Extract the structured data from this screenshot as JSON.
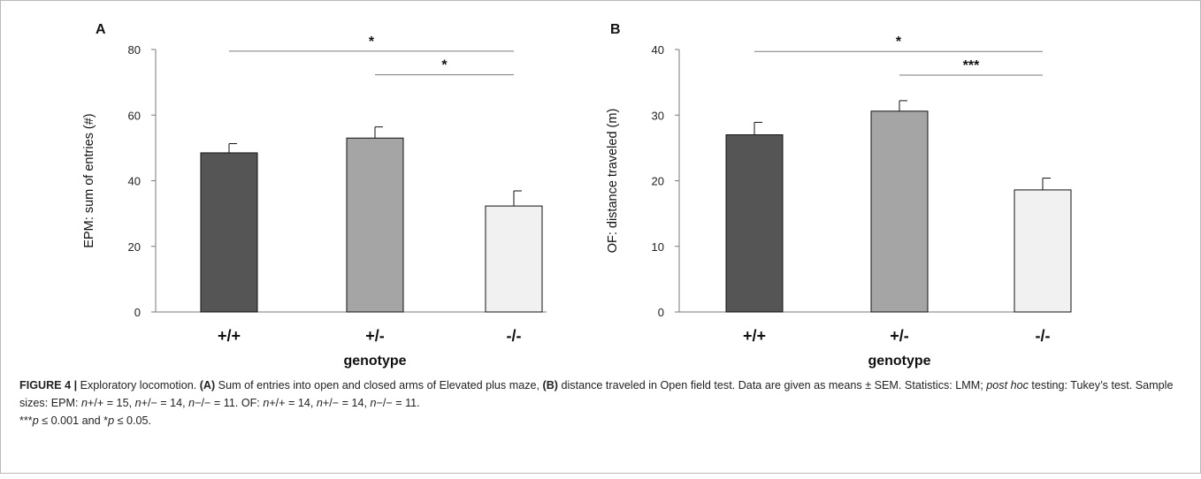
{
  "chart_data": [
    {
      "panel": "A",
      "type": "bar",
      "categories": [
        "+/+",
        "+/-",
        "-/-"
      ],
      "values": [
        48.5,
        53,
        32.3
      ],
      "errors": [
        2.8,
        3.4,
        4.6
      ],
      "colors": [
        "#555555",
        "#a5a5a5",
        "#f1f1f1"
      ],
      "ylabel": "EPM: sum of entries (#)",
      "xlabel": "genotype",
      "ylim": [
        0,
        80
      ],
      "yticks": [
        0,
        20,
        40,
        60,
        80
      ],
      "significance": [
        {
          "from": 0,
          "to": 2,
          "label": "*",
          "y": 79.5
        },
        {
          "from": 1,
          "to": 2,
          "label": "*",
          "y": 72.3
        }
      ]
    },
    {
      "panel": "B",
      "type": "bar",
      "categories": [
        "+/+",
        "+/-",
        "-/-"
      ],
      "values": [
        27,
        30.6,
        18.6
      ],
      "errors": [
        1.9,
        1.6,
        1.8
      ],
      "colors": [
        "#555555",
        "#a5a5a5",
        "#f1f1f1"
      ],
      "ylabel": "OF: distance traveled (m)",
      "xlabel": "genotype",
      "ylim": [
        0,
        40
      ],
      "yticks": [
        0,
        10,
        20,
        30,
        40
      ],
      "significance": [
        {
          "from": 0,
          "to": 2,
          "label": "*",
          "y": 39.7
        },
        {
          "from": 1,
          "to": 2,
          "label": "***",
          "y": 36.1
        }
      ]
    }
  ],
  "caption": {
    "label": "FIGURE 4 |",
    "title": " Exploratory locomotion. ",
    "a_tag": "(A)",
    "a_text": " Sum of entries into open and closed arms of Elevated plus maze, ",
    "b_tag": "(B)",
    "b_text": " distance traveled in Open field test. Data are given as means ± SEM. Statistics: LMM; ",
    "posthoc": "post hoc",
    "posthoc_rest": " testing: Tukey’s test. Sample sizes: EPM: ",
    "n": "n",
    "epm_1": "+/+ = 15, ",
    "epm_2": "+/− = 14, ",
    "epm_3": "−/− = 11. OF: ",
    "of_1": "+/+ = 14, ",
    "of_2": "+/− = 14, ",
    "of_3": "−/− = 11.",
    "sig_1": "***",
    "p": "p",
    "sig_2": " ≤ 0.001 and *",
    "sig_3": " ≤ 0.05."
  }
}
